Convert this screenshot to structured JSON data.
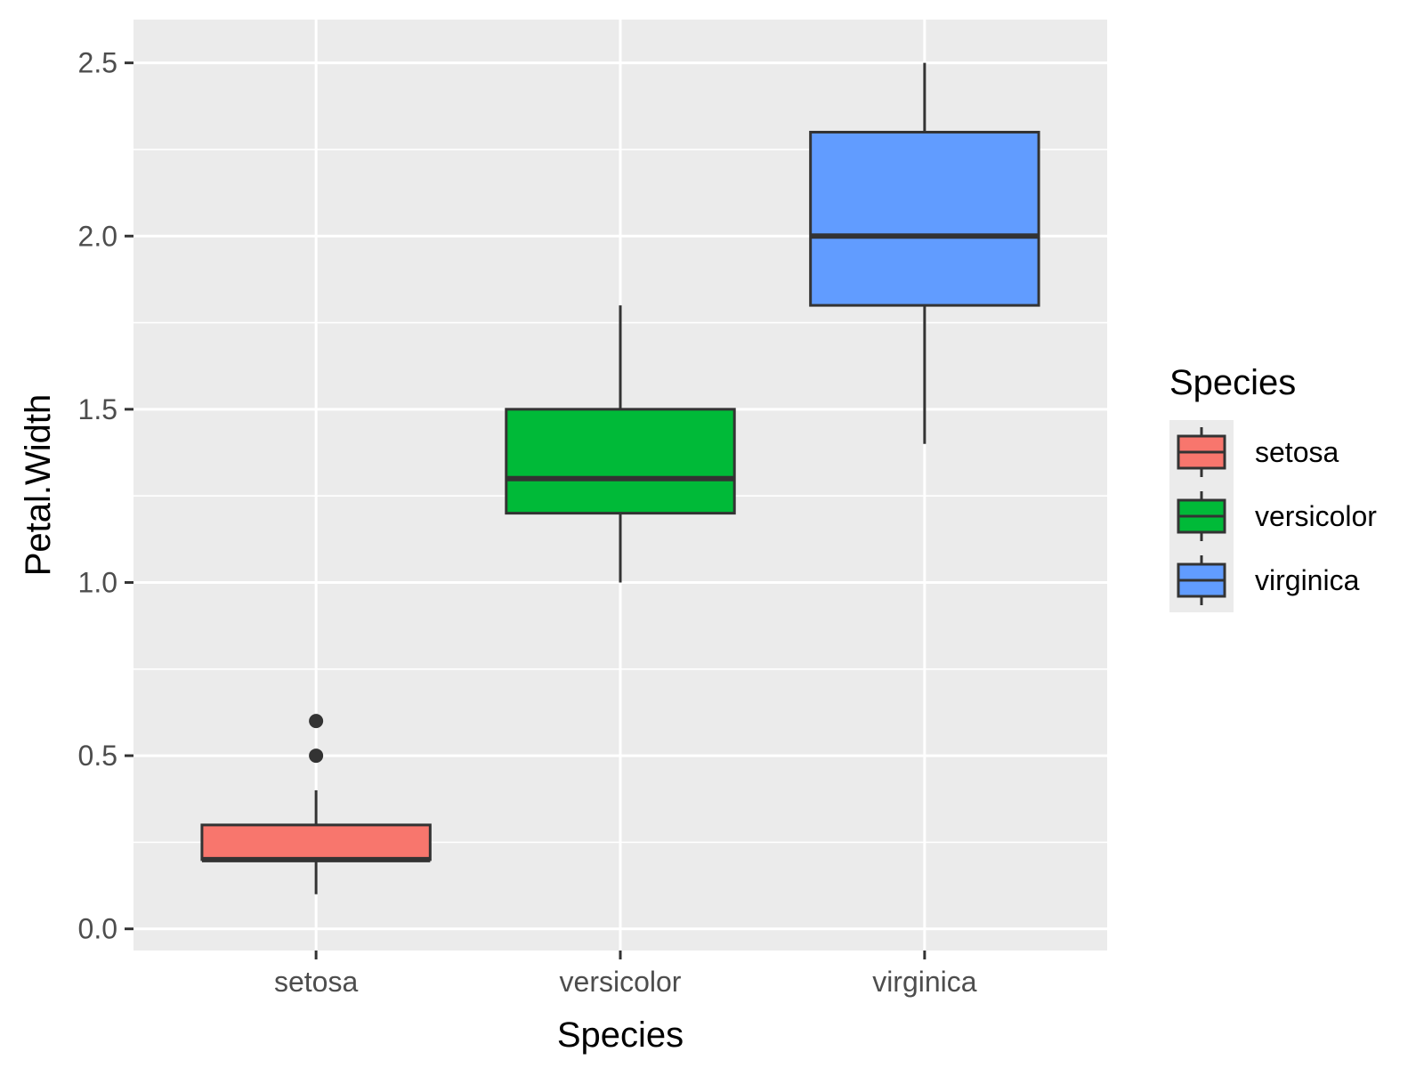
{
  "chart_data": {
    "type": "boxplot",
    "xlabel": "Species",
    "ylabel": "Petal.Width",
    "categories": [
      "setosa",
      "versicolor",
      "virginica"
    ],
    "ylim": [
      -0.0625,
      2.625
    ],
    "yticks": [
      0.0,
      0.5,
      1.0,
      1.5,
      2.0,
      2.5
    ],
    "ytick_labels": [
      "0.0",
      "0.5",
      "1.0",
      "1.5",
      "2.0",
      "2.5"
    ],
    "y_minor_ticks": [
      0.25,
      0.75,
      1.25,
      1.75,
      2.25
    ],
    "grid": true,
    "legend": {
      "title": "Species",
      "position": "right"
    },
    "series": [
      {
        "name": "setosa",
        "color": "#F8766D",
        "min": 0.1,
        "q1": 0.2,
        "median": 0.2,
        "q3": 0.3,
        "max": 0.4,
        "outliers": [
          0.5,
          0.6
        ]
      },
      {
        "name": "versicolor",
        "color": "#00BA38",
        "min": 1.0,
        "q1": 1.2,
        "median": 1.3,
        "q3": 1.5,
        "max": 1.8,
        "outliers": []
      },
      {
        "name": "virginica",
        "color": "#619CFF",
        "min": 1.4,
        "q1": 1.8,
        "median": 2.0,
        "q3": 2.3,
        "max": 2.5,
        "outliers": []
      }
    ]
  }
}
